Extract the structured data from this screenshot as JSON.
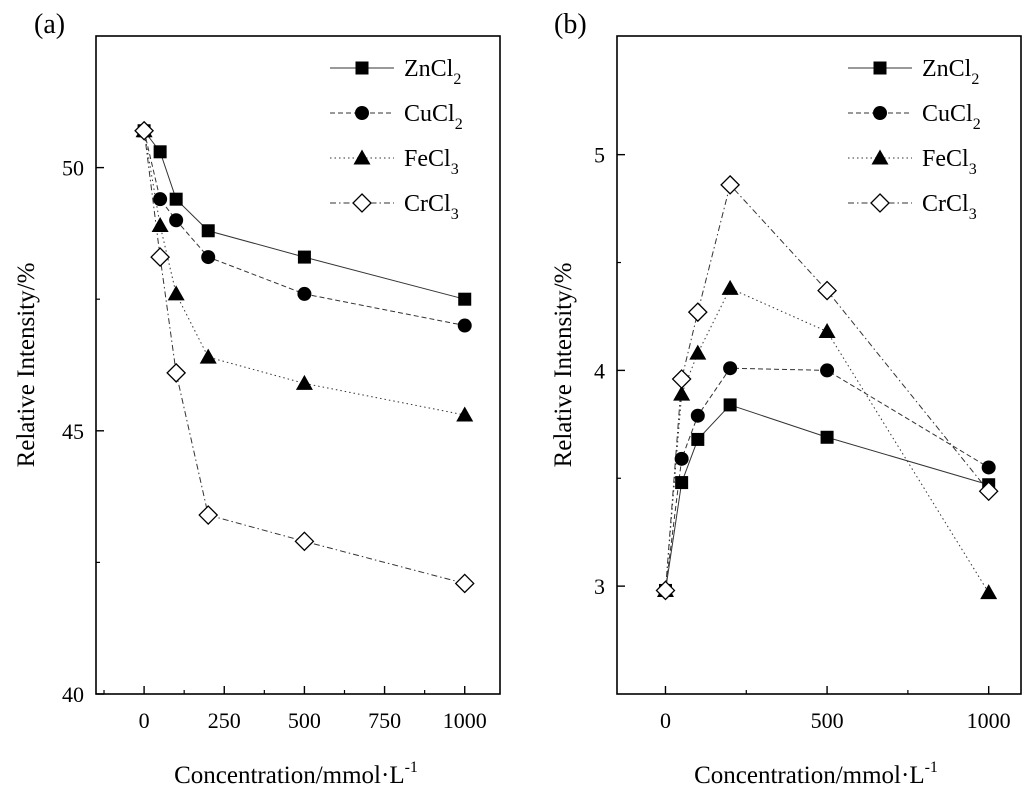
{
  "chart_data": [
    {
      "panel_label": "(a)",
      "type": "line",
      "xlabel": "Concentration/mmol·L",
      "xlabel_sup": "-1",
      "ylabel": "Relative Intensity/%",
      "xlim": [
        -150,
        1110
      ],
      "ylim": [
        40,
        52.5
      ],
      "xticks": [
        0,
        250,
        500,
        750,
        1000
      ],
      "xtick_labels": [
        "0",
        "250",
        "500",
        "750",
        "1000"
      ],
      "yticks": [
        40,
        45,
        50
      ],
      "ytick_labels": [
        "40",
        "45",
        "50"
      ],
      "grid": false,
      "legend": "top-right",
      "x": [
        0,
        50,
        100,
        200,
        500,
        1000
      ],
      "series": [
        {
          "name": "ZnCl",
          "sub": "2",
          "marker": "square",
          "dash": "solid",
          "values": [
            50.7,
            50.3,
            49.4,
            48.8,
            48.3,
            47.5
          ]
        },
        {
          "name": "CuCl",
          "sub": "2",
          "marker": "circle",
          "dash": "dashed",
          "values": [
            50.7,
            49.4,
            49.0,
            48.3,
            47.6,
            47.0
          ]
        },
        {
          "name": "FeCl",
          "sub": "3",
          "marker": "triangle",
          "dash": "dotted",
          "values": [
            50.7,
            48.9,
            47.6,
            46.4,
            45.9,
            45.3
          ]
        },
        {
          "name": "CrCl",
          "sub": "3",
          "marker": "diamond",
          "dash": "dashdot",
          "values": [
            50.7,
            48.3,
            46.1,
            43.4,
            42.9,
            42.1
          ]
        }
      ]
    },
    {
      "panel_label": "(b)",
      "type": "line",
      "xlabel": "Concentration/mmol·L",
      "xlabel_sup": "-1",
      "ylabel": "Relative Intensity/%",
      "xlim": [
        -150,
        1100
      ],
      "ylim": [
        2.5,
        5.55
      ],
      "xticks": [
        0,
        500,
        1000
      ],
      "xtick_labels": [
        "0",
        "500",
        "1000"
      ],
      "yticks": [
        3,
        4,
        5
      ],
      "ytick_labels": [
        "3",
        "4",
        "5"
      ],
      "grid": false,
      "legend": "top-right",
      "x": [
        0,
        50,
        100,
        200,
        500,
        1000
      ],
      "series": [
        {
          "name": "ZnCl",
          "sub": "2",
          "marker": "square",
          "dash": "solid",
          "values": [
            2.98,
            3.48,
            3.68,
            3.84,
            3.69,
            3.47
          ]
        },
        {
          "name": "CuCl",
          "sub": "2",
          "marker": "circle",
          "dash": "dashed",
          "values": [
            2.98,
            3.59,
            3.79,
            4.01,
            4.0,
            3.55
          ]
        },
        {
          "name": "FeCl",
          "sub": "3",
          "marker": "triangle",
          "dash": "dotted",
          "values": [
            2.98,
            3.89,
            4.08,
            4.38,
            4.18,
            2.97
          ]
        },
        {
          "name": "CrCl",
          "sub": "3",
          "marker": "diamond",
          "dash": "dashdot",
          "values": [
            2.98,
            3.96,
            4.27,
            4.86,
            4.37,
            3.44
          ]
        }
      ]
    }
  ]
}
